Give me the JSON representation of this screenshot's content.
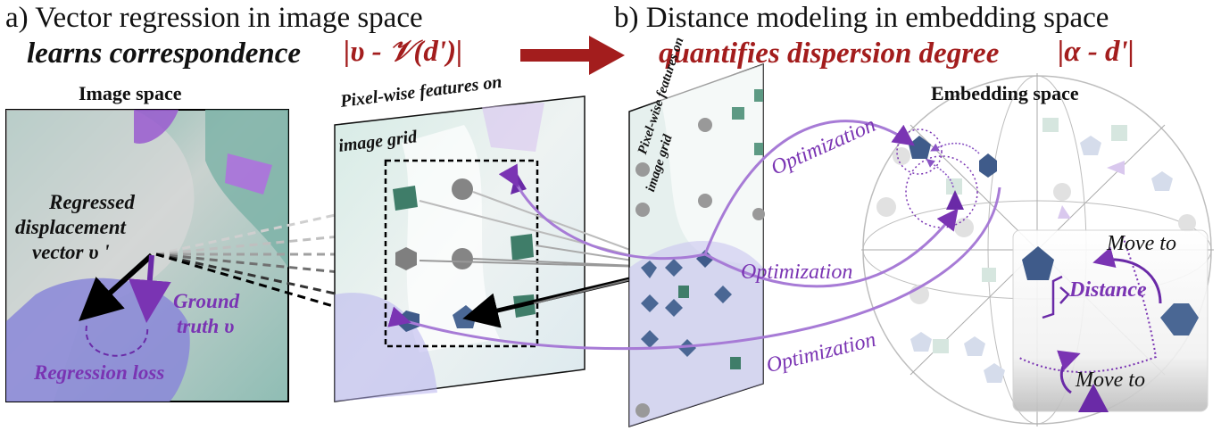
{
  "header": {
    "a_title": "a) Vector regression in image space",
    "a_sub_text": "learns correspondence",
    "a_sub_formula": "|υ - 𝒱(d')|",
    "b_title": "b) Distance modeling in embedding space",
    "b_sub_text": "quantifies dispersion degree",
    "b_sub_formula": "|α - d'|"
  },
  "image_space": {
    "title": "Image space",
    "regressed_line1": "Regressed",
    "regressed_line2": "displacement",
    "regressed_line3": "vector υ '",
    "ground_line1": "Ground",
    "ground_line2": "truth υ",
    "loss": "Regression loss"
  },
  "grid_panel": {
    "label_line1": "Pixel-wise features on",
    "label_line2": "image grid"
  },
  "embedding": {
    "title": "Embedding space",
    "optimization": "Optimization",
    "move_to": "Move to",
    "distance": "Distance"
  },
  "colors": {
    "purple": "#7a34b3",
    "red": "#a31d1d",
    "teal": "#4f9a86",
    "navy": "#4a6794",
    "gray": "#7f7f7f"
  }
}
